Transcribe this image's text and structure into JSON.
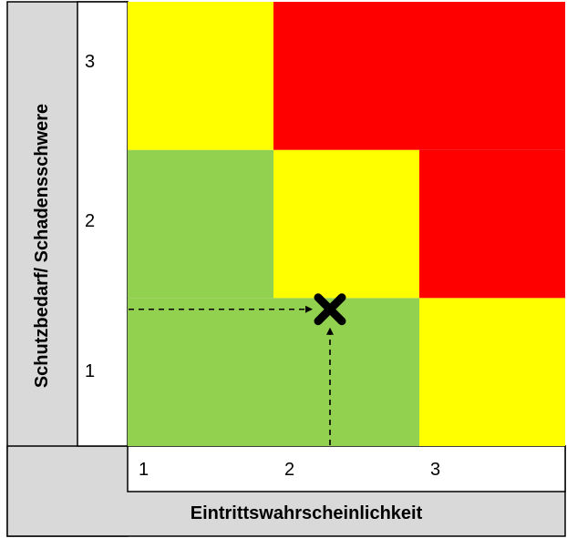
{
  "chart_data": {
    "type": "heatmap",
    "xlabel": "Eintrittswahrscheinlichkeit",
    "ylabel": "Schutzbedarf/ Schadensschwere",
    "x_ticks": [
      "1",
      "2",
      "3"
    ],
    "y_ticks": [
      "1",
      "2",
      "3"
    ],
    "cells": [
      {
        "x": 1,
        "y": 1,
        "level": "low"
      },
      {
        "x": 2,
        "y": 1,
        "level": "low"
      },
      {
        "x": 3,
        "y": 1,
        "level": "medium"
      },
      {
        "x": 1,
        "y": 2,
        "level": "low"
      },
      {
        "x": 2,
        "y": 2,
        "level": "medium"
      },
      {
        "x": 3,
        "y": 2,
        "level": "high"
      },
      {
        "x": 1,
        "y": 3,
        "level": "medium"
      },
      {
        "x": 2,
        "y": 3,
        "level": "high"
      },
      {
        "x": 3,
        "y": 3,
        "level": "high"
      }
    ],
    "colors": {
      "low": "#92d050",
      "medium": "#ffff00",
      "high": "#ff0000"
    },
    "marker": {
      "x": 2.45,
      "y": 1.0,
      "shape": "x-cross"
    },
    "grid": false
  }
}
